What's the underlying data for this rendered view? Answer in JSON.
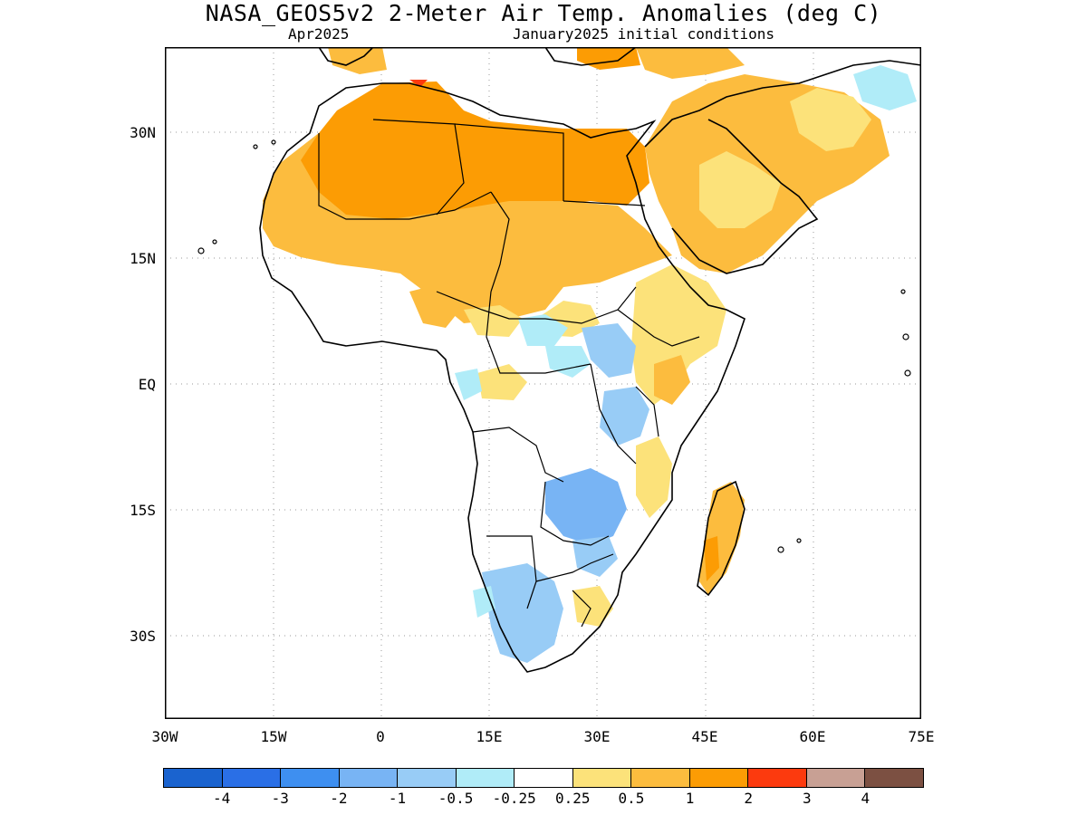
{
  "title": "NASA_GEOS5v2 2-Meter Air Temp. Anomalies (deg C)",
  "subtitle_left": "Apr2025",
  "subtitle_right": "January2025 initial conditions",
  "lat_labels": [
    "30N",
    "15N",
    "EQ",
    "15S",
    "30S"
  ],
  "lon_labels": [
    "30W",
    "15W",
    "0",
    "15E",
    "30E",
    "45E",
    "60E",
    "75E"
  ],
  "colorbar": {
    "colors": [
      "#1a63cf",
      "#2a6fe6",
      "#3e8ff0",
      "#78b4f4",
      "#98ccf6",
      "#b0ecf8",
      "#ffffff",
      "#fce27a",
      "#fcbc3e",
      "#fc9c04",
      "#fc3a0e",
      "#c8a094",
      "#7c5042"
    ],
    "labels": [
      "-4",
      "-3",
      "-2",
      "-1",
      "-0.5",
      "-0.25",
      "0.25",
      "0.5",
      "1",
      "2",
      "3",
      "4"
    ]
  }
}
